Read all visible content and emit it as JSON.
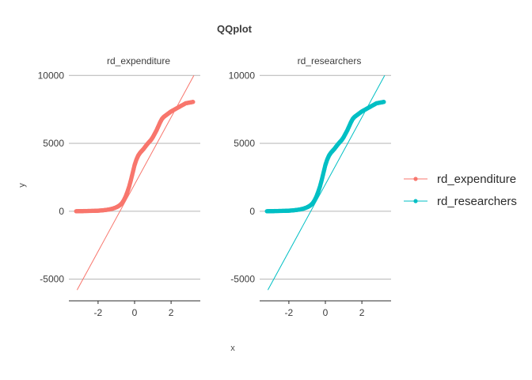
{
  "chart_data": {
    "type": "scatter",
    "title": "QQplot",
    "xlabel": "x",
    "ylabel": "y",
    "grid": "horizontal major lines",
    "legend_position": "right",
    "xlim": [
      -3.6,
      3.6
    ],
    "ylim": [
      -6600,
      10600
    ],
    "x_ticks": [
      -2,
      0,
      2
    ],
    "x_tick_labels": [
      "-2",
      "0",
      "2"
    ],
    "y_ticks": [
      -5000,
      0,
      5000,
      10000
    ],
    "y_tick_labels": [
      "-5000",
      "0",
      "5000",
      "10000"
    ],
    "panels": [
      {
        "name": "rd_expenditure",
        "color": "#F8766D",
        "line": {
          "x": [
            -3.15,
            3.25
          ],
          "y": [
            -5800,
            10000
          ]
        }
      },
      {
        "name": "rd_researchers",
        "color": "#00BFC4",
        "line": {
          "x": [
            -3.15,
            3.25
          ],
          "y": [
            -5800,
            10000
          ]
        }
      }
    ],
    "sample_curve": {
      "x": [
        -3.2,
        -3.0,
        -2.8,
        -2.5,
        -2.2,
        -2.0,
        -1.8,
        -1.6,
        -1.4,
        -1.2,
        -1.0,
        -0.9,
        -0.8,
        -0.7,
        -0.6,
        -0.5,
        -0.4,
        -0.3,
        -0.2,
        -0.1,
        0.0,
        0.1,
        0.2,
        0.3,
        0.4,
        0.5,
        0.6,
        0.7,
        0.8,
        0.9,
        1.0,
        1.1,
        1.2,
        1.3,
        1.4,
        1.5,
        1.6,
        1.7,
        1.8,
        1.9,
        2.0,
        2.2,
        2.4,
        2.6,
        2.8,
        3.0,
        3.2
      ],
      "y": [
        0,
        5,
        10,
        20,
        30,
        40,
        60,
        90,
        130,
        190,
        290,
        360,
        450,
        580,
        780,
        1050,
        1400,
        1800,
        2300,
        2850,
        3400,
        3800,
        4100,
        4300,
        4450,
        4600,
        4780,
        4950,
        5100,
        5250,
        5450,
        5700,
        5950,
        6250,
        6550,
        6800,
        6950,
        7050,
        7150,
        7250,
        7350,
        7500,
        7650,
        7800,
        7950,
        8000,
        8050
      ]
    }
  },
  "legend": {
    "items": [
      {
        "label": "rd_expenditure",
        "color": "#F8766D"
      },
      {
        "label": "rd_researchers",
        "color": "#00BFC4"
      }
    ]
  }
}
